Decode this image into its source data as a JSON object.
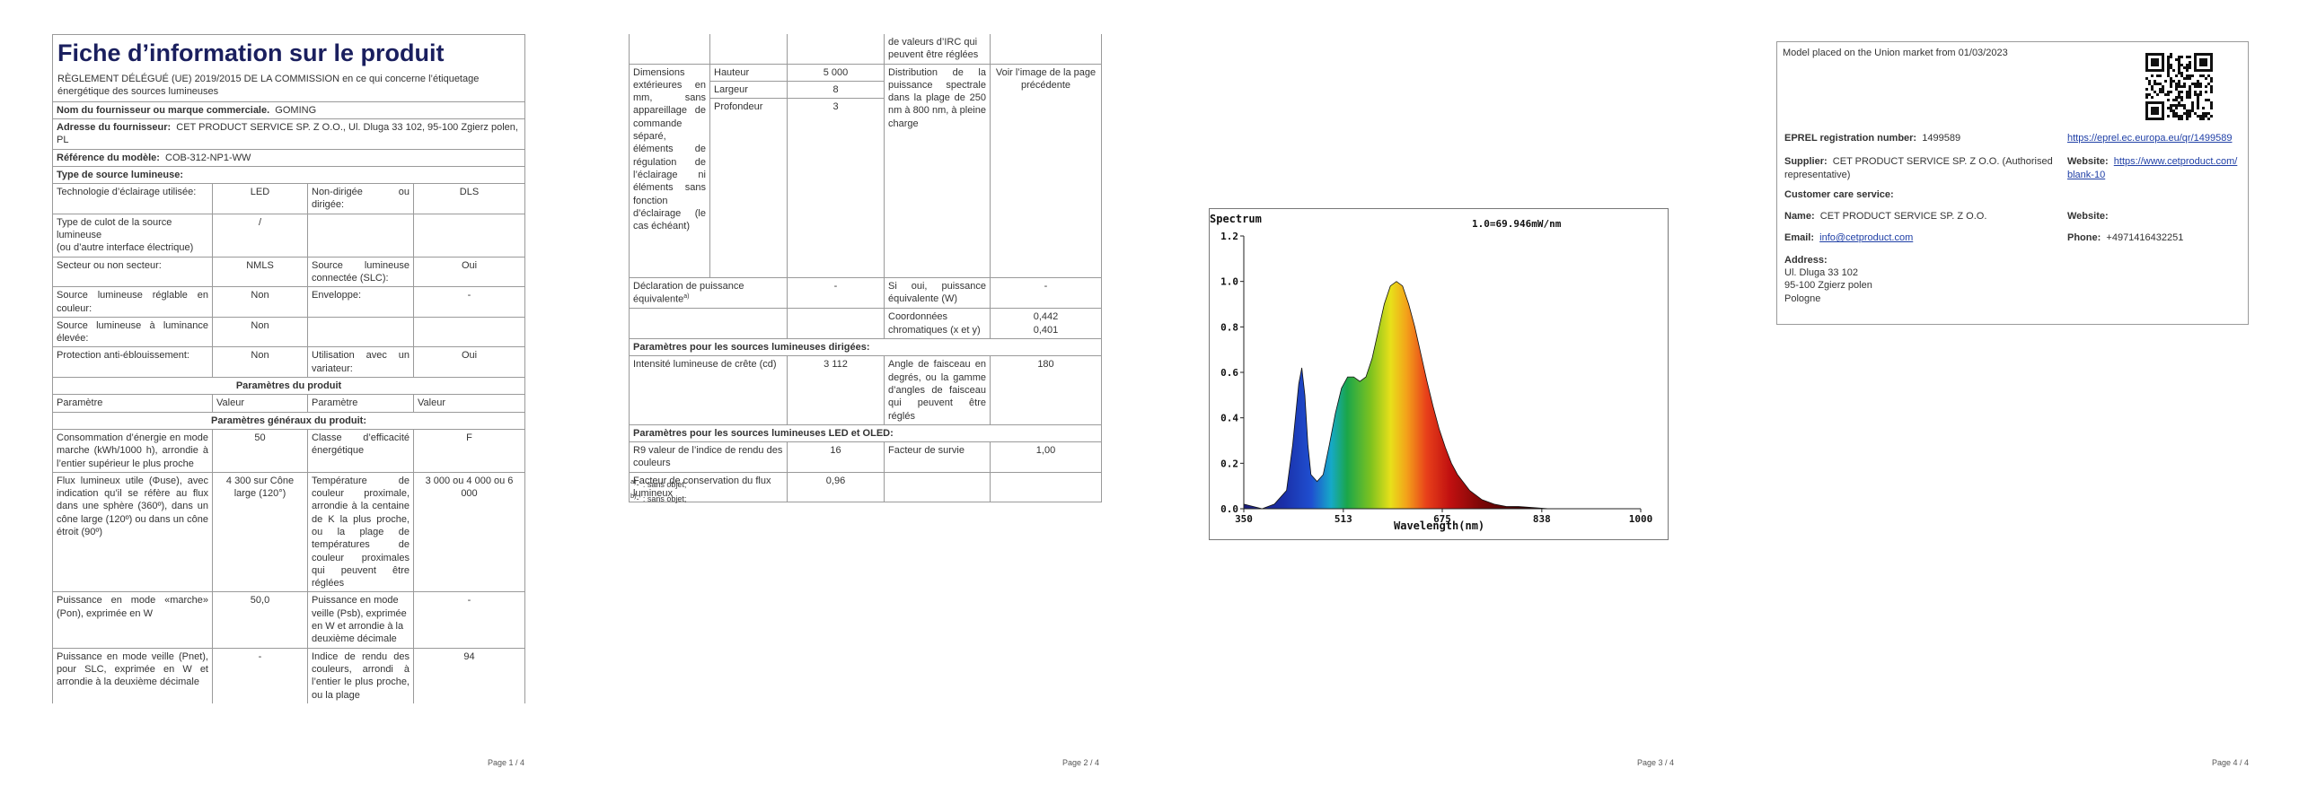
{
  "page1": {
    "title": "Fiche d’information sur le produit",
    "regulation": "RÈGLEMENT DÉLÉGUÉ (UE) 2019/2015 DE LA COMMISSION en ce qui concerne l’étiquetage énergétique des sources lumineuses",
    "supplier_name_label": "Nom du fournisseur ou marque commerciale.",
    "supplier_name": "GOMING",
    "supplier_address_label": "Adresse du fournisseur:",
    "supplier_address": "CET PRODUCT SERVICE SP. Z O.O., Ul. Dluga 33 102, 95-100 Zgierz polen, PL",
    "model_label": "Référence du modèle:",
    "model": "COB-312-NP1-WW",
    "type_header": "Type de source lumineuse:",
    "rows": {
      "tech_label": "Technologie d’éclairage utilisée:",
      "tech_value": "LED",
      "nondirected_label": "Non-dirigée ou dirigée:",
      "nondirected_value": "DLS",
      "cap_label_1": "Type de culot de la source lumineuse",
      "cap_label_2": "(ou d’autre interface électrique)",
      "cap_value": "/",
      "mains_label": "Secteur ou non secteur:",
      "mains_value": "NMLS",
      "connected_label": "Source lumineuse connectée (SLC):",
      "connected_value": "Oui",
      "colour_label": "Source lumineuse réglable en couleur:",
      "colour_value": "Non",
      "envelope_label": "Enveloppe:",
      "envelope_value": "-",
      "hlum_label": "Source lumineuse à luminance élevée:",
      "hlum_value": "Non",
      "glare_label": "Protection anti-éblouissement:",
      "glare_value": "Non",
      "dimmer_label": "Utilisation avec un variateur:",
      "dimmer_value": "Oui"
    },
    "product_params_header": "Paramètres du produit",
    "col_param": "Paramètre",
    "col_value": "Valeur",
    "general_params_header": "Paramètres généraux du produit:",
    "consumption_label": "Consommation d’énergie en mode marche (kWh/1000 h), arrondie à l’entier supérieur le plus proche",
    "consumption_value": "50",
    "eeclass_label": "Classe d’efficacité énergétique",
    "eeclass_value": "F",
    "flux_label": "Flux lumineux utile (Φuse), avec indication qu’il se réfère au flux dans une sphère (360º), dans un cône large (120º) ou dans un cône étroit (90º)",
    "flux_value": "4 300 sur Cône large (120°)",
    "cct_label": "Température de couleur proximale, arrondie à la centaine de K la plus proche, ou la plage de températures de couleur proximales qui peuvent être réglées",
    "cct_value": "3 000 ou 4 000 ou 6 000",
    "power_on_label": "Puissance en mode «marche» (Pon), exprimée en W",
    "power_on_value": "50,0",
    "standby_label": "Puissance en mode veille (Psb), exprimée en W et arrondie à la deuxième décimale",
    "standby_value": "-",
    "netstandby_label": "Puissance en mode veille (Pnet), pour SLC, exprimée en W et arrondie à la deuxième décimale",
    "netstandby_value": "-",
    "cri_label": "Indice de rendu des couleurs, arrondi à l’entier le plus proche, ou la plage",
    "cri_value": "94",
    "page_number": "Page 1 / 4"
  },
  "page2": {
    "cri_cont": "de valeurs d’IRC qui peuvent être réglées",
    "dims_label": "Dimensions extérieures en mm, sans appareillage de commande séparé, éléments de régulation de l’éclairage ni éléments sans fonction d’éclairage (le cas échéant)",
    "height_label": "Hauteur",
    "height_value": "5 000",
    "width_label": "Largeur",
    "width_value": "8",
    "depth_label": "Profondeur",
    "depth_value": "3",
    "spd_label": "Distribution de la puissance spectrale dans la plage de 250 nm à 800 nm, à pleine charge",
    "spd_value": "Voir l’image de la page précédente",
    "equiv_label": "Déclaration de puissance équivalente",
    "equiv_sup": "a)",
    "equiv_value": "-",
    "equiv_w_label": "Si oui, puissance équivalente (W)",
    "equiv_w_value": "-",
    "chroma_label": "Coordonnées chromatiques (x et y)",
    "chroma_x": "0,442",
    "chroma_y": "0,401",
    "dls_header": "Paramètres pour les sources lumineuses dirigées:",
    "peak_label": "Intensité lumineuse de crête (cd)",
    "peak_value": "3 112",
    "beam_label": "Angle de faisceau en degrés, ou la gamme d’angles de faisceau qui peuvent être réglés",
    "beam_value": "180",
    "led_header": "Paramètres pour les sources lumineuses LED et OLED:",
    "r9_label": "R9 valeur de l’indice de rendu des couleurs",
    "r9_value": "16",
    "survival_label": "Facteur de survie",
    "survival_value": "1,00",
    "maint_label": "Facteur de conservation du flux lumineux",
    "maint_value": "0,96",
    "note_a_mark": "a)",
    "note_a_text": "-’ : sans objet;",
    "note_b_mark": "b)",
    "note_b_text": "-’ : sans objet;",
    "page_number": "Page 2 / 4"
  },
  "page3": {
    "page_number": "Page 3 / 4"
  },
  "chart_data": {
    "type": "area",
    "title": "Spectrum",
    "annotation": "1.0=69.946mW/nm",
    "xlabel": "Wavelength(nm)",
    "ylabel": "",
    "xlim": [
      350,
      1000
    ],
    "ylim": [
      0,
      1.2
    ],
    "xticks": [
      "350",
      "513",
      "675",
      "838",
      "1000"
    ],
    "yticks": [
      "0.0",
      "0.2",
      "0.4",
      "0.6",
      "0.8",
      "1.0",
      "1.2"
    ],
    "x": [
      350,
      380,
      400,
      420,
      430,
      440,
      445,
      450,
      455,
      460,
      470,
      480,
      490,
      500,
      510,
      520,
      530,
      540,
      550,
      560,
      570,
      580,
      590,
      600,
      610,
      620,
      630,
      640,
      650,
      660,
      670,
      680,
      690,
      700,
      720,
      740,
      760,
      780,
      800,
      850,
      900,
      1000
    ],
    "y": [
      0.02,
      0.0,
      0.02,
      0.08,
      0.28,
      0.55,
      0.62,
      0.5,
      0.28,
      0.15,
      0.12,
      0.15,
      0.28,
      0.42,
      0.53,
      0.58,
      0.58,
      0.56,
      0.58,
      0.66,
      0.78,
      0.9,
      0.98,
      1.0,
      0.98,
      0.9,
      0.8,
      0.68,
      0.56,
      0.45,
      0.35,
      0.27,
      0.2,
      0.15,
      0.08,
      0.04,
      0.02,
      0.01,
      0.01,
      0.0,
      0.0,
      0.0
    ],
    "grid": false
  },
  "page4": {
    "placed_on_market": "Model placed on the Union market from 01/03/2023",
    "eprel_label": "EPREL registration number:",
    "eprel_value": "1499589",
    "eprel_link": "https://eprel.ec.europa.eu/qr/1499589",
    "supplier_label": "Supplier:",
    "supplier_value": "CET PRODUCT SERVICE SP. Z O.O. (Authorised representative)",
    "website_label": "Website:",
    "website_value": "https://www.cetproduct.com/blank-10",
    "care_header": "Customer care service:",
    "name_label": "Name:",
    "name_value": "CET PRODUCT SERVICE SP. Z O.O.",
    "website2_label": "Website:",
    "email_label": "Email:",
    "email_value": "info@cetproduct.com",
    "phone_label": "Phone:",
    "phone_value": "+4971416432251",
    "address_label": "Address:",
    "address_1": "Ul. Dluga 33 102",
    "address_2": "95-100 Zgierz polen",
    "address_3": "Pologne",
    "page_number": "Page 4 / 4"
  }
}
